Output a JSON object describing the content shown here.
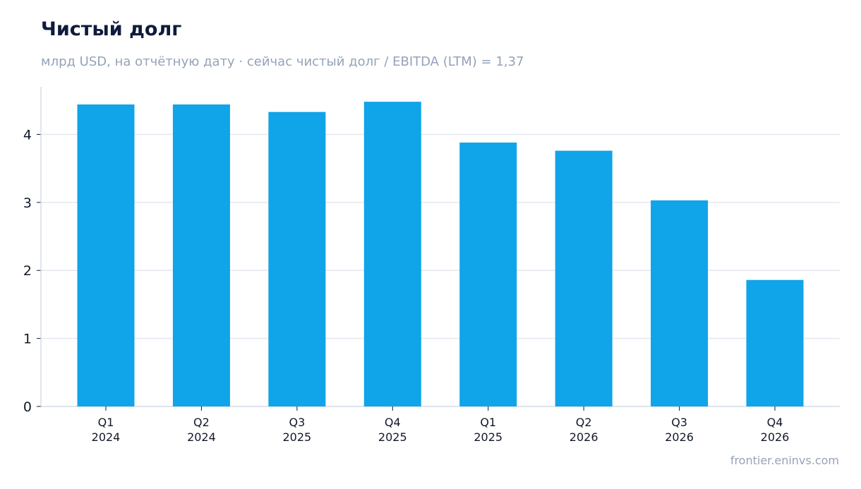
{
  "chart_data": {
    "type": "bar",
    "title": "Чистый долг",
    "subtitle": "млрд USD, на отчётную дату · сейчас чистый долг / EBITDA (LTM) = 1,37",
    "source": "frontier.eninvs.com",
    "categories": [
      [
        "Q1",
        "2024"
      ],
      [
        "Q2",
        "2024"
      ],
      [
        "Q3",
        "2025"
      ],
      [
        "Q4",
        "2025"
      ],
      [
        "Q1",
        "2025"
      ],
      [
        "Q2",
        "2026"
      ],
      [
        "Q3",
        "2026"
      ],
      [
        "Q4",
        "2026"
      ]
    ],
    "values": [
      4.44,
      4.44,
      4.33,
      4.48,
      3.88,
      3.76,
      3.03,
      1.86
    ],
    "ylim": [
      0,
      4.7
    ],
    "yticks": [
      "0",
      "1",
      "2",
      "3",
      "4"
    ],
    "grid": true,
    "colors": {
      "bar": "#10a4e8",
      "grid": "#e5e7f0",
      "axis": "#cbd5e1"
    }
  }
}
